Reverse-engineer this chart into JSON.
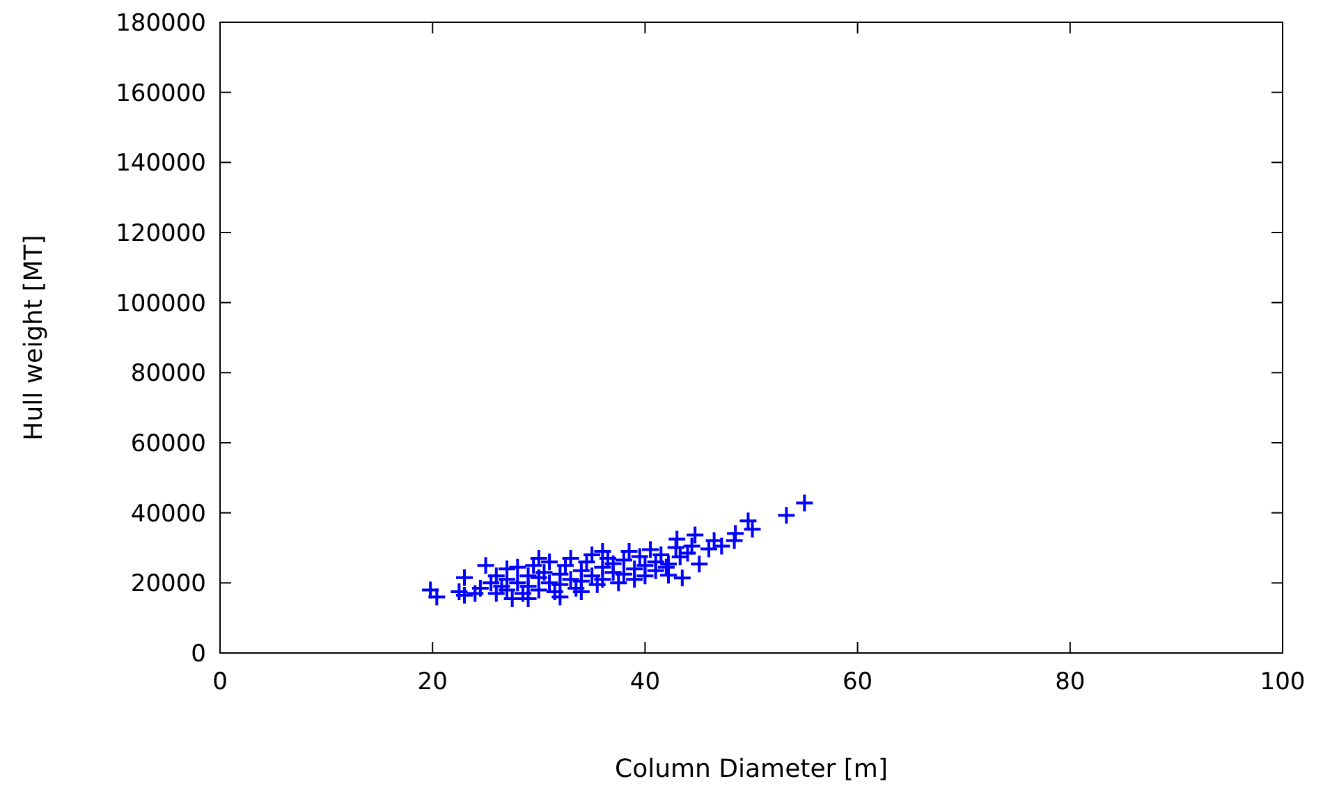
{
  "chart_data": {
    "type": "scatter",
    "xlabel": "Column Diameter [m]",
    "ylabel": "Hull weight [MT]",
    "xlim": [
      0,
      100
    ],
    "xticks": [
      0,
      20,
      40,
      60,
      80,
      100
    ],
    "ylim": [
      0,
      180000
    ],
    "yticks": [
      0,
      20000,
      40000,
      60000,
      80000,
      100000,
      120000,
      140000,
      160000,
      180000
    ],
    "grid": false,
    "marker": "cross",
    "series": [
      {
        "color": "#0000ff",
        "x": [
          19.8,
          20.4,
          22.5,
          23,
          23,
          24,
          24.5,
          25,
          25.5,
          26,
          26,
          26.5,
          27,
          27,
          27.5,
          28,
          28,
          28.5,
          29,
          29,
          29,
          29.5,
          30,
          30,
          30.5,
          31,
          31,
          31.5,
          32,
          32,
          32.5,
          33,
          33,
          33.5,
          34,
          34,
          34.5,
          35,
          35,
          35.5,
          36,
          36,
          36.5,
          37,
          37,
          37.5,
          38,
          38,
          38.5,
          39,
          39,
          39.5,
          40,
          40,
          40.5,
          41,
          41,
          41.5,
          42,
          42.2,
          42.2,
          42.9,
          43,
          43.3,
          43.5,
          44,
          44.4,
          44.7,
          45.1,
          46,
          46.5,
          47.2,
          48.4,
          48.5,
          49.7,
          50.1,
          53.3,
          55,
          27,
          32,
          30,
          36,
          34
        ],
        "values": [
          18000,
          16000,
          17500,
          16500,
          21500,
          17000,
          18500,
          25000,
          20000,
          22000,
          17000,
          19000,
          21000,
          18000,
          15500,
          20000,
          24500,
          17000,
          22000,
          19000,
          15500,
          25000,
          21500,
          18000,
          23000,
          20000,
          26000,
          17500,
          22500,
          19500,
          25000,
          21000,
          27000,
          18500,
          23500,
          20500,
          26000,
          22000,
          28000,
          19500,
          24500,
          21000,
          27000,
          23000,
          25500,
          20000,
          26500,
          22500,
          29000,
          24000,
          21000,
          27500,
          25000,
          22000,
          29500,
          26000,
          23500,
          28000,
          24500,
          22200,
          25400,
          30100,
          32500,
          27400,
          21400,
          28500,
          30500,
          33700,
          25400,
          29700,
          32100,
          30500,
          32100,
          34100,
          37700,
          35300,
          39300,
          42800,
          24000,
          16000,
          27000,
          29000,
          17500
        ]
      }
    ]
  }
}
